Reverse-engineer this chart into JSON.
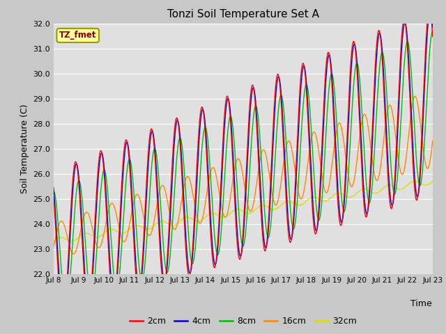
{
  "title": "Tonzi Soil Temperature Set A",
  "ylabel": "Soil Temperature (C)",
  "xlabel": "Time",
  "annotation": "TZ_fmet",
  "ylim": [
    22.0,
    32.0
  ],
  "yticks": [
    22.0,
    23.0,
    24.0,
    25.0,
    26.0,
    27.0,
    28.0,
    29.0,
    30.0,
    31.0,
    32.0
  ],
  "xtick_labels": [
    "Jul 8",
    "Jul 9",
    "Jul 10",
    "Jul 11",
    "Jul 12",
    "Jul 13",
    "Jul 14",
    "Jul 15",
    "Jul 16",
    "Jul 17",
    "Jul 18",
    "Jul 19",
    "Jul 20",
    "Jul 21",
    "Jul 22",
    "Jul 23"
  ],
  "series": {
    "2cm": {
      "color": "#ff0000",
      "lw": 1.0
    },
    "4cm": {
      "color": "#0000cc",
      "lw": 1.0
    },
    "8cm": {
      "color": "#00bb00",
      "lw": 1.0
    },
    "16cm": {
      "color": "#ff8800",
      "lw": 1.0
    },
    "32cm": {
      "color": "#dddd00",
      "lw": 1.0
    }
  },
  "legend_labels": [
    "2cm",
    "4cm",
    "8cm",
    "16cm",
    "32cm"
  ],
  "legend_colors": [
    "#ff0000",
    "#0000cc",
    "#00bb00",
    "#ff8800",
    "#dddd00"
  ],
  "plot_bg_color": "#e0e0e0",
  "fig_bg_color": "#c8c8c8",
  "n_days": 15,
  "pts_per_day": 96
}
